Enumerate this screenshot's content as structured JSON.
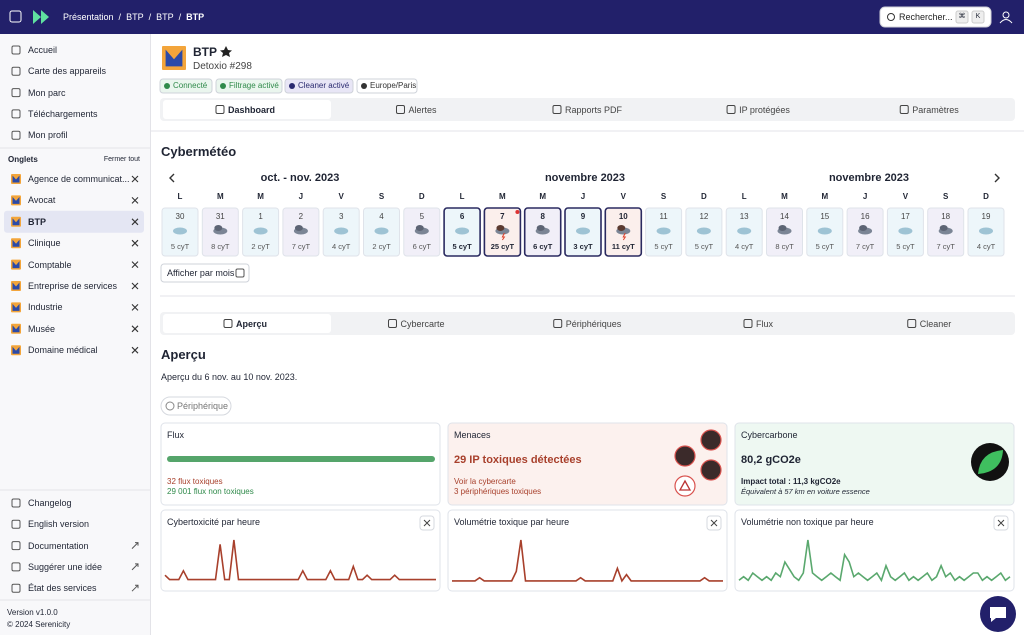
{
  "topbar": {
    "breadcrumb": [
      "Présentation",
      "BTP",
      "BTP",
      "BTP"
    ],
    "separator": "/",
    "search": "Rechercher...",
    "keys": [
      "⌘",
      "K"
    ]
  },
  "sidebar": {
    "nav": [
      "Accueil",
      "Carte des appareils",
      "Mon parc",
      "Téléchargements",
      "Mon profil"
    ],
    "tabs_title": "Onglets",
    "close_all": "Fermer tout",
    "tabs": [
      "Agence de communicat...",
      "Avocat",
      "BTP",
      "Clinique",
      "Comptable",
      "Entreprise de services",
      "Industrie",
      "Musée",
      "Domaine médical"
    ],
    "footer": [
      "Changelog",
      "English version",
      "Documentation",
      "Suggérer une idée",
      "État des services"
    ],
    "version": "Version v1.0.0",
    "copyright": "© 2024 Serenicity"
  },
  "header": {
    "name": "BTP",
    "subtitle": "Detoxio #298",
    "badges": [
      "Connecté",
      "Filtrage activé",
      "Cleaner activé",
      "Europe/Paris"
    ]
  },
  "main_tabs": [
    "Dashboard",
    "Alertes",
    "Rapports PDF",
    "IP protégées",
    "Paramètres"
  ],
  "cybermeteo": {
    "title": "Cybermétéo",
    "months": [
      "oct. - nov. 2023",
      "novembre 2023",
      "novembre 2023"
    ],
    "weekdays": [
      "L",
      "M",
      "M",
      "J",
      "V",
      "S",
      "D"
    ],
    "days": [
      {
        "day": 30,
        "label": "5 cyT"
      },
      {
        "day": 31,
        "label": "8 cyT"
      },
      {
        "day": 1,
        "label": "2 cyT"
      },
      {
        "day": 2,
        "label": "7 cyT"
      },
      {
        "day": 3,
        "label": "4 cyT"
      },
      {
        "day": 4,
        "label": "2 cyT"
      },
      {
        "day": 5,
        "label": "6 cyT"
      },
      {
        "day": 6,
        "label": "5 cyT",
        "selected": true
      },
      {
        "day": 7,
        "label": "25 cyT",
        "selected": true,
        "alert": true
      },
      {
        "day": 8,
        "label": "6 cyT",
        "selected": true
      },
      {
        "day": 9,
        "label": "3 cyT",
        "selected": true
      },
      {
        "day": 10,
        "label": "11 cyT",
        "selected": true
      },
      {
        "day": 11,
        "label": "5 cyT"
      },
      {
        "day": 12,
        "label": "5 cyT"
      },
      {
        "day": 13,
        "label": "4 cyT"
      },
      {
        "day": 14,
        "label": "8 cyT"
      },
      {
        "day": 15,
        "label": "5 cyT"
      },
      {
        "day": 16,
        "label": "7 cyT"
      },
      {
        "day": 17,
        "label": "5 cyT"
      },
      {
        "day": 18,
        "label": "7 cyT"
      },
      {
        "day": 19,
        "label": "4 cyT"
      }
    ],
    "month_button": "Afficher par mois"
  },
  "sub_tabs": [
    "Aperçu",
    "Cybercarte",
    "Périphériques",
    "Flux",
    "Cleaner"
  ],
  "overview": {
    "title": "Aperçu",
    "period": "Aperçu du 6 nov. au 10 nov. 2023.",
    "filter": "Périphérique"
  },
  "cards": {
    "flux": {
      "title": "Flux",
      "toxic": "32 flux toxiques",
      "clean": "29 001 flux non toxiques"
    },
    "menaces": {
      "title": "Menaces",
      "headline": "29 IP toxiques détectées",
      "link": "Voir la cybercarte",
      "devices": "3 périphériques toxiques"
    },
    "carbone": {
      "title": "Cybercarbone",
      "value": "80,2 gCO2e",
      "total": "Impact total : 11,3 kgCO2e",
      "equiv": "Équivalent à 57 km en voiture essence"
    }
  },
  "sparklines": [
    {
      "title": "Cybertoxicité par heure",
      "color": "#a8402c",
      "values": [
        2,
        1,
        1,
        1,
        3,
        1,
        1,
        1,
        1,
        1,
        1,
        1,
        9,
        1,
        1,
        10,
        1,
        1,
        1,
        1,
        1,
        1,
        1,
        1,
        1,
        1,
        1,
        1,
        1,
        1,
        3,
        1,
        1,
        1,
        1,
        1,
        3,
        1,
        1,
        1,
        1,
        4,
        1,
        1,
        2,
        1,
        1,
        1,
        1,
        1,
        2,
        1,
        1,
        1,
        1,
        1,
        1,
        1,
        1,
        1
      ]
    },
    {
      "title": "Volumétrie toxique par heure",
      "color": "#a8402c",
      "values": [
        1,
        1,
        1,
        1,
        1,
        1,
        2,
        1,
        1,
        1,
        1,
        1,
        1,
        1,
        4,
        14,
        1,
        1,
        1,
        1,
        1,
        1,
        1,
        1,
        1,
        1,
        1,
        1,
        2,
        1,
        1,
        1,
        1,
        1,
        1,
        1,
        5,
        1,
        3,
        1,
        1,
        1,
        1,
        1,
        1,
        1,
        1,
        1,
        1,
        1,
        1,
        1,
        1,
        1,
        1,
        2,
        1,
        1,
        1,
        1
      ]
    },
    {
      "title": "Volumétrie non toxique par heure",
      "color": "#5aa86e",
      "values": [
        1,
        2,
        1,
        3,
        2,
        1,
        2,
        1,
        3,
        2,
        6,
        4,
        2,
        1,
        3,
        12,
        3,
        2,
        1,
        2,
        3,
        2,
        1,
        8,
        6,
        2,
        3,
        2,
        1,
        2,
        3,
        1,
        5,
        2,
        1,
        2,
        3,
        1,
        2,
        1,
        2,
        3,
        1,
        2,
        5,
        2,
        3,
        1,
        2,
        1,
        2,
        3,
        3,
        1,
        2,
        1,
        2,
        3,
        1,
        2
      ]
    }
  ],
  "expand_label": null
}
